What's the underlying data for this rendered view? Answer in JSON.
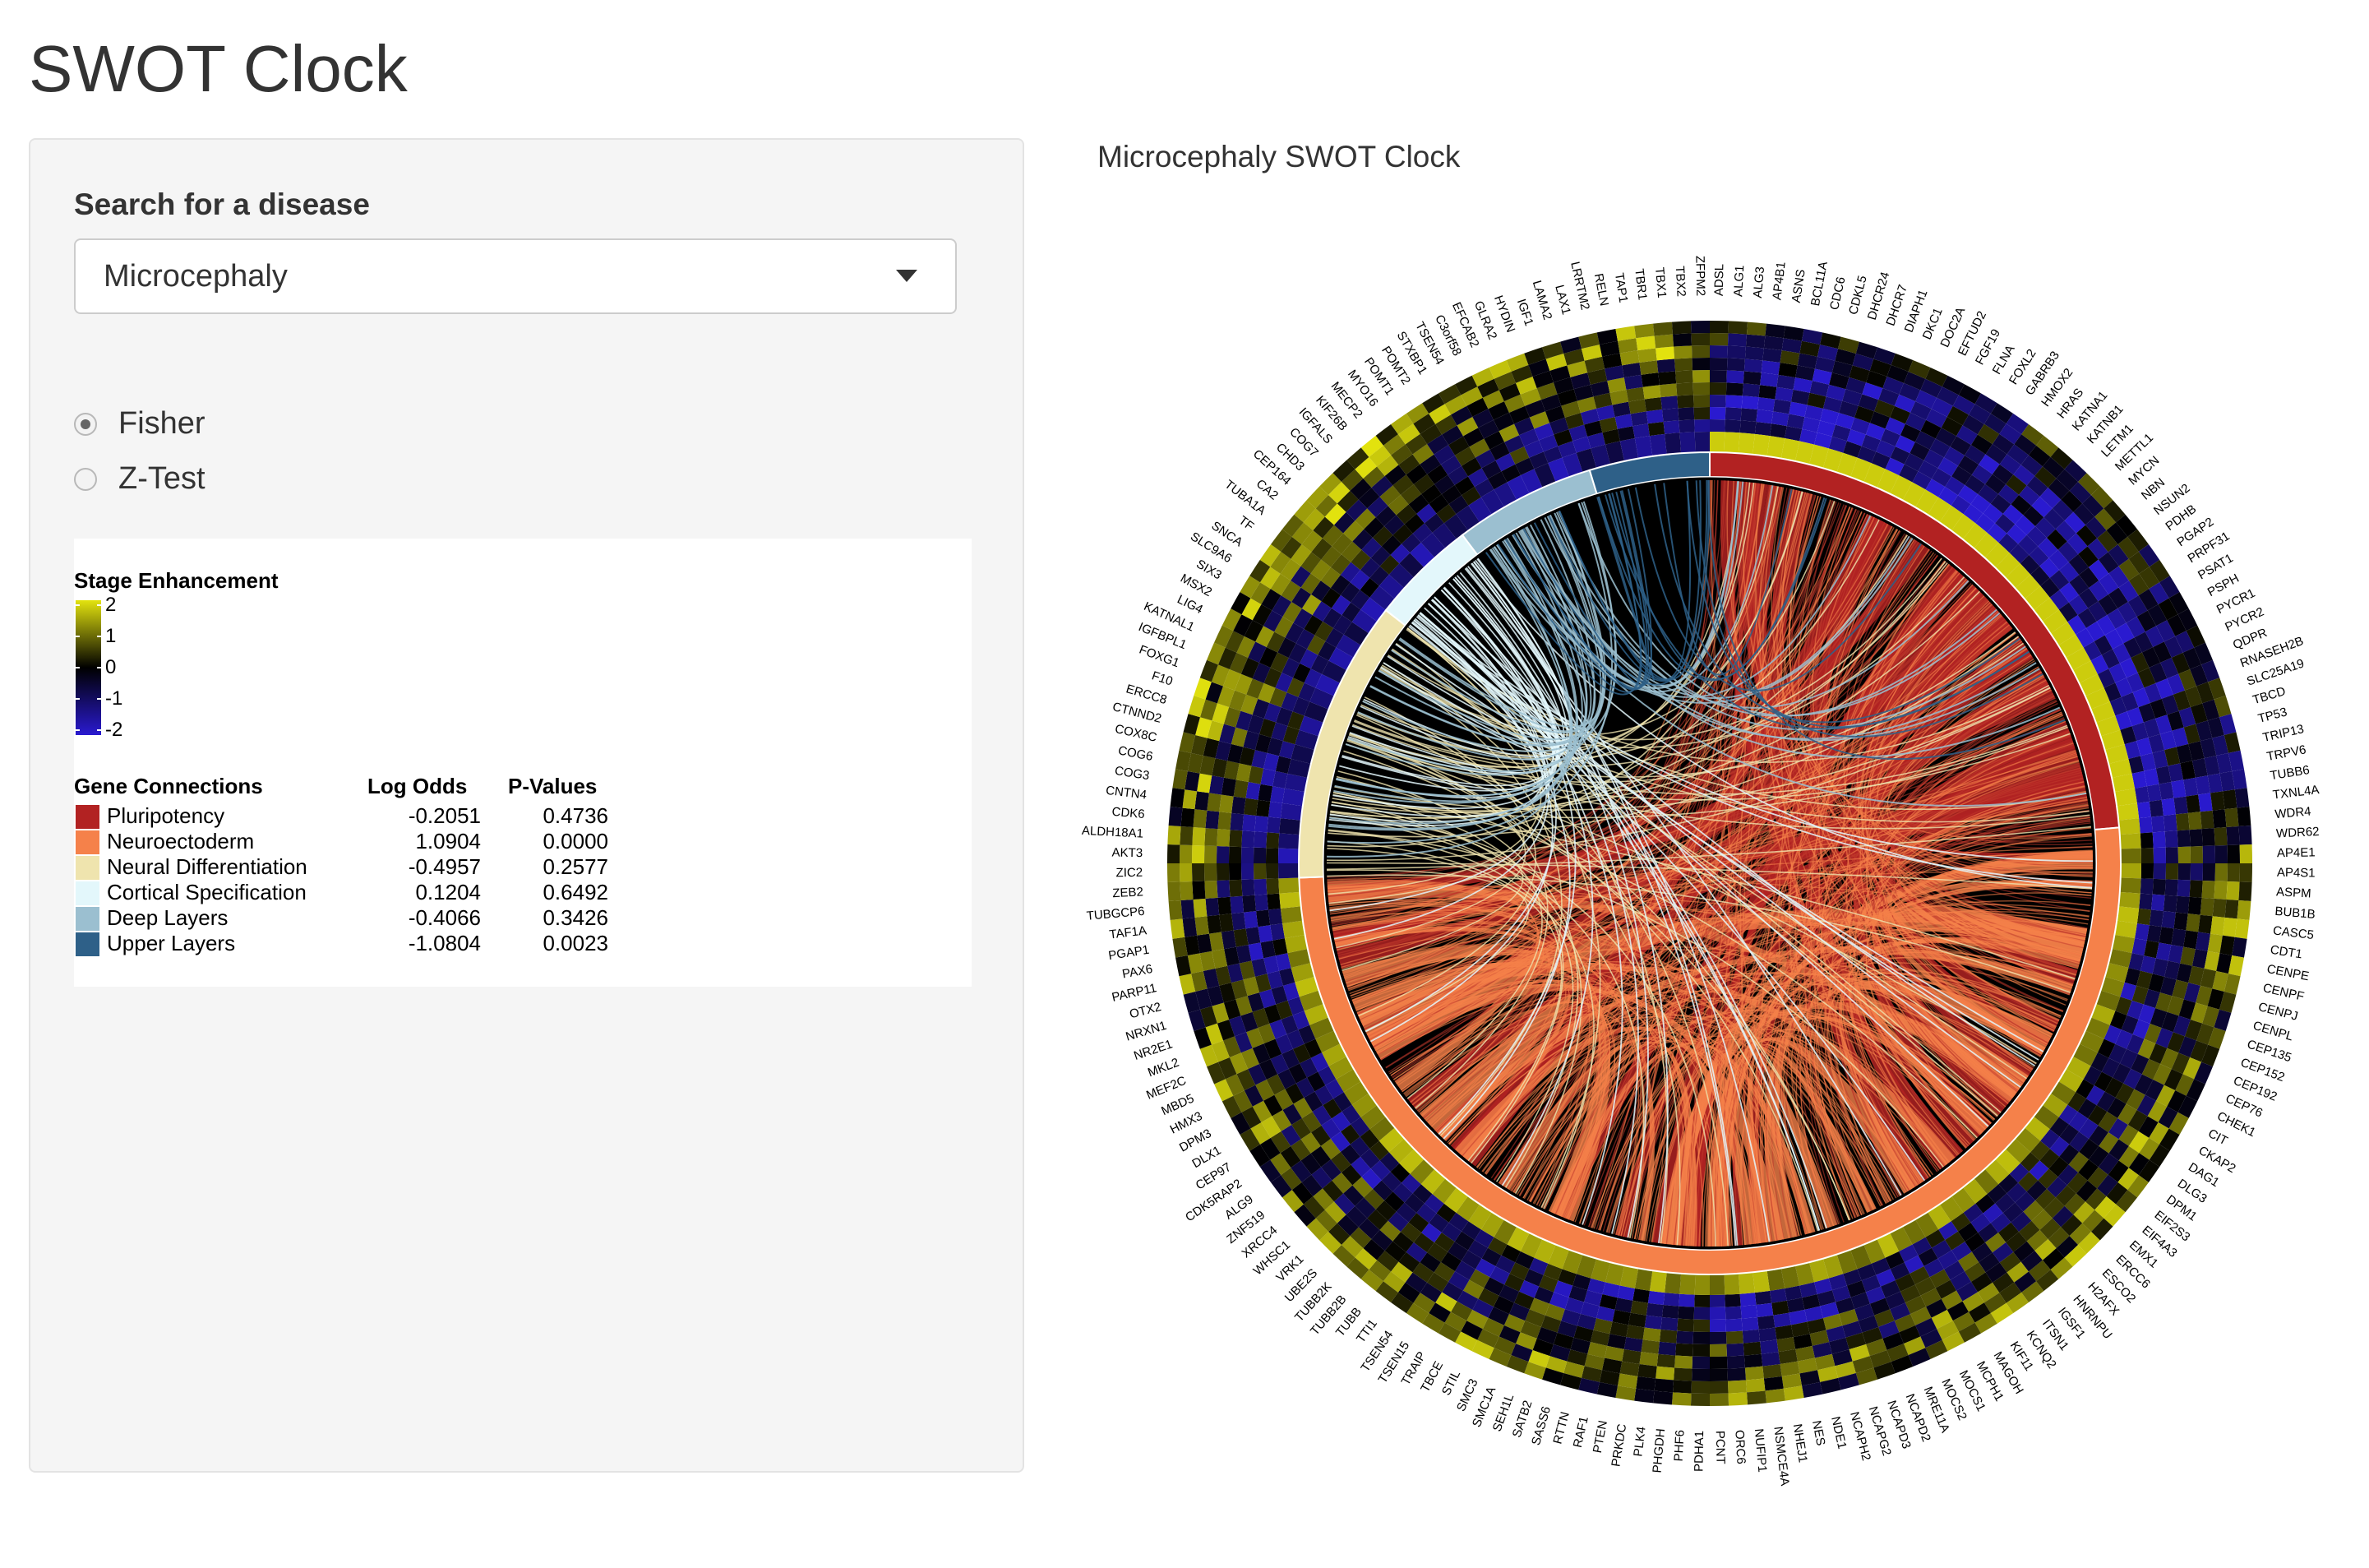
{
  "app": {
    "title": "SWOT Clock"
  },
  "sidebar": {
    "search_label": "Search for a disease",
    "selected_disease": "Microcephaly",
    "radio_options": [
      {
        "label": "Fisher",
        "checked": true
      },
      {
        "label": "Z-Test",
        "checked": false
      }
    ]
  },
  "legend": {
    "stage_title": "Stage Enhancement",
    "stage_ticks": [
      "2",
      "1",
      "0",
      "-1",
      "-2"
    ],
    "connections_header": "Gene Connections",
    "log_odds_header": "Log Odds",
    "pvalues_header": "P-Values",
    "rows": [
      {
        "label": "Pluripotency",
        "log_odds": "-0.2051",
        "p_value": "0.4736",
        "color": "#b22222"
      },
      {
        "label": "Neuroectoderm",
        "log_odds": "1.0904",
        "p_value": "0.0000",
        "color": "#f5814a"
      },
      {
        "label": "Neural Differentiation",
        "log_odds": "-0.4957",
        "p_value": "0.2577",
        "color": "#efe4ae"
      },
      {
        "label": "Cortical Specification",
        "log_odds": "0.1204",
        "p_value": "0.6492",
        "color": "#e3f7fb"
      },
      {
        "label": "Deep Layers",
        "log_odds": "-0.4066",
        "p_value": "0.3426",
        "color": "#9bbfd0"
      },
      {
        "label": "Upper Layers",
        "log_odds": "-1.0804",
        "p_value": "0.0023",
        "color": "#2e6088"
      }
    ]
  },
  "chart_title": "Microcephaly SWOT Clock",
  "chart_data": {
    "type": "chord",
    "title": "Microcephaly SWOT Clock",
    "sectors": [
      {
        "stage": "Pluripotency",
        "start_deg": 0,
        "end_deg": 85
      },
      {
        "stage": "Neuroectoderm",
        "start_deg": 85,
        "end_deg": 268
      },
      {
        "stage": "Neural Differentiation",
        "start_deg": 268,
        "end_deg": 308
      },
      {
        "stage": "Cortical Specification",
        "start_deg": 308,
        "end_deg": 323
      },
      {
        "stage": "Deep Layers",
        "start_deg": 323,
        "end_deg": 343
      },
      {
        "stage": "Upper Layers",
        "start_deg": 343,
        "end_deg": 360
      }
    ],
    "heatmap_color_range": [
      -2,
      2
    ],
    "heatmap_colors": {
      "low": "#2a1ad0",
      "mid": "#000000",
      "high": "#e3e30e"
    },
    "genes": [
      "ADSL",
      "ALG1",
      "ALG3",
      "AP4B1",
      "ASNS",
      "BCL11A",
      "CDC6",
      "CDKL5",
      "DHCR24",
      "DHCR7",
      "DIAPH1",
      "DKC1",
      "DOC2A",
      "EFTUD2",
      "FGF19",
      "FLNA",
      "FOXL2",
      "GABRB3",
      "HMOX2",
      "HRAS",
      "KATNA1",
      "KATNB1",
      "LETM1",
      "METTL1",
      "MYCN",
      "NBN",
      "NSUN2",
      "PDHB",
      "PGAP2",
      "PRPF31",
      "PSAT1",
      "PSPH",
      "PYCR1",
      "PYCR2",
      "QDPR",
      "RNASEH2B",
      "SLC25A19",
      "TBCD",
      "TP53",
      "TRIP13",
      "TRPV6",
      "TUBB6",
      "TXNL4A",
      "WDR4",
      "WDR62",
      "AP4E1",
      "AP4S1",
      "ASPM",
      "BUB1B",
      "CASC5",
      "CDT1",
      "CENPE",
      "CENPF",
      "CENPJ",
      "CENPL",
      "CEP135",
      "CEP152",
      "CEP192",
      "CEP76",
      "CHEK1",
      "CIT",
      "CKAP2",
      "DAG1",
      "DLG3",
      "DPM1",
      "EIF2S3",
      "EIF4A3",
      "EMX1",
      "ERCC6",
      "ESCO2",
      "H2AFX",
      "HNRNPU",
      "IGSF1",
      "ITSN1",
      "KCNQ2",
      "KIF11",
      "MAGOH",
      "MCPH1",
      "MOCS1",
      "MOCS2",
      "MRE11A",
      "NCAPD2",
      "NCAPD3",
      "NCAPG2",
      "NCAPH2",
      "NDE1",
      "NES",
      "NHEJ1",
      "NSMCE4A",
      "NUFIP1",
      "ORC6",
      "PCNT",
      "PDHA1",
      "PHF6",
      "PHGDH",
      "PLK4",
      "PRKDC",
      "PTEN",
      "RAF1",
      "RTTN",
      "SASS6",
      "SATB2",
      "SEH1L",
      "SMC1A",
      "SMC3",
      "STIL",
      "TBCE",
      "TRAIP",
      "TSEN15",
      "TSEN54",
      "TTI1",
      "TUBB",
      "TUBB2B",
      "TUBB2K",
      "UBE2S",
      "VRK1",
      "WHSC1",
      "XRCC4",
      "ZNF519",
      "ALG9",
      "CDK5RAP2",
      "CEP97",
      "DLX1",
      "DPM3",
      "HMX3",
      "MBD5",
      "MEF2C",
      "MKL2",
      "NR2E1",
      "NRXN1",
      "OTX2",
      "PARP11",
      "PAX6",
      "PGAP1",
      "TAF1A",
      "TUBGCP6",
      "ZEB2",
      "ZIC2",
      "AKT3",
      "ALDH18A1",
      "CDK6",
      "CNTN4",
      "COG3",
      "COG6",
      "COX8C",
      "CTNND2",
      "ERCC8",
      "F10",
      "FOXG1",
      "IGFBPL1",
      "KATNAL1",
      "LIG4",
      "MSX2",
      "SIX3",
      "SLC9A6",
      "SNCA",
      "TF",
      "TUBA1A",
      "CA2",
      "CEP164",
      "CHD3",
      "COG7",
      "IGFALS",
      "KIF26B",
      "MECP2",
      "MYO16",
      "POMT1",
      "POMT2",
      "STXBP1",
      "TSEN54",
      "C3orf58",
      "EFCAB2",
      "GLRA2",
      "HYDIN",
      "IGF1",
      "LAMA2",
      "LAX1",
      "LRRTM2",
      "RELN",
      "TAP1",
      "TBR1",
      "TBX1",
      "TBX2",
      "ZFPM2"
    ]
  }
}
